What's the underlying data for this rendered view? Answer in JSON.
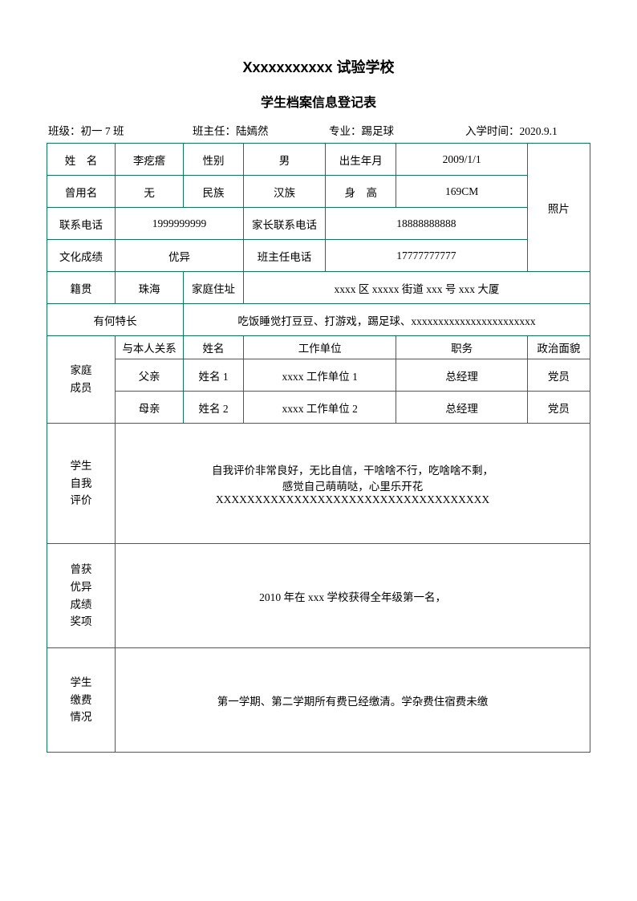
{
  "title1": "Xxxxxxxxxxx 试验学校",
  "title2": "学生档案信息登记表",
  "header": {
    "class_label": "班级：",
    "class_value": "初一 7 班",
    "teacher_label": "班主任：",
    "teacher_value": "陆嫣然",
    "major_label": "专业：",
    "major_value": "踢足球",
    "enroll_label": "入学时间：",
    "enroll_value": "2020.9.1"
  },
  "labels": {
    "name": "姓　名",
    "gender": "性别",
    "birth": "出生年月",
    "former_name": "曾用名",
    "ethnic": "民族",
    "height": "身　高",
    "phone": "联系电话",
    "parent_phone": "家长联系电话",
    "grade": "文化成绩",
    "teacher_phone": "班主任电话",
    "origin": "籍贯",
    "address": "家庭住址",
    "specialty": "有何特长",
    "family": "家庭\n成员",
    "relation": "与本人关系",
    "fm_name": "姓名",
    "workplace": "工作单位",
    "position": "职务",
    "political": "政治面貌",
    "self_eval": "学生\n自我\n评价",
    "awards": "曾获\n优异\n成绩\n奖项",
    "payment": "学生\n缴费\n情况",
    "photo": "照片"
  },
  "student": {
    "name": "李疙瘩",
    "gender": "男",
    "birth": "2009/1/1",
    "former_name": "无",
    "ethnic": "汉族",
    "height": "169CM",
    "phone": "1999999999",
    "parent_phone": "18888888888",
    "grade": "优异",
    "teacher_phone": "17777777777",
    "origin": "珠海",
    "address": "xxxx 区 xxxxx 街道 xxx 号 xxx 大厦",
    "specialty": "吃饭睡觉打豆豆、打游戏，踢足球、xxxxxxxxxxxxxxxxxxxxxxx"
  },
  "family_rows": [
    {
      "relation": "父亲",
      "name": "姓名 1",
      "workplace": "xxxx 工作单位 1",
      "position": "总经理",
      "political": "党员"
    },
    {
      "relation": "母亲",
      "name": "姓名 2",
      "workplace": "xxxx 工作单位 2",
      "position": "总经理",
      "political": "党员"
    }
  ],
  "self_eval_text": "自我评价非常良好，无比自信，干啥啥不行，吃啥啥不剩，\n感觉自己萌萌哒，心里乐开花\nXXXXXXXXXXXXXXXXXXXXXXXXXXXXXXXXXXX",
  "awards_text": "2010 年在 xxx 学校获得全年级第一名，",
  "payment_text": "第一学期、第二学期所有费已经缴清。学杂费住宿费未缴",
  "colors": {
    "border": "#0a7a5a",
    "text": "#000000",
    "background": "#ffffff"
  }
}
